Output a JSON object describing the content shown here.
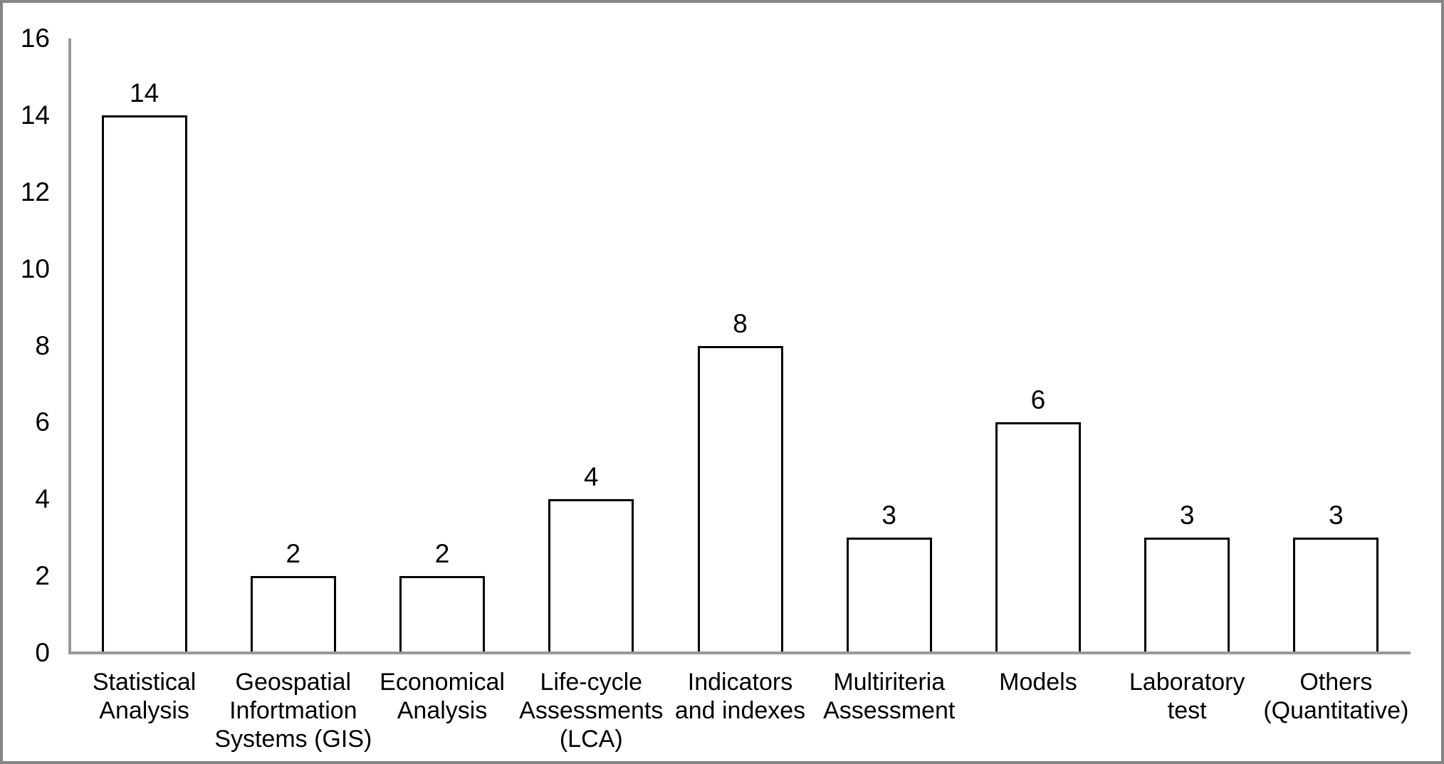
{
  "chart_data": {
    "type": "bar",
    "title": "",
    "xlabel": "",
    "ylabel": "",
    "categories": [
      "Statistical Analysis",
      "Geospatial Infortmation Systems (GIS)",
      "Economical Analysis",
      "Life-cycle Assessments (LCA)",
      "Indicators and indexes",
      "Multiriteria Assessment",
      "Models",
      "Laboratory test",
      "Others (Quantitative)"
    ],
    "category_lines": [
      [
        "Statistical",
        "Analysis"
      ],
      [
        "Geospatial",
        "Infortmation",
        "Systems (GIS)"
      ],
      [
        "Economical",
        "Analysis"
      ],
      [
        "Life-cycle",
        "Assessments",
        "(LCA)"
      ],
      [
        "Indicators",
        "and indexes"
      ],
      [
        "Multiriteria",
        "Assessment"
      ],
      [
        "Models"
      ],
      [
        "Laboratory",
        "test"
      ],
      [
        "Others",
        "(Quantitative)"
      ]
    ],
    "values": [
      14,
      2,
      2,
      4,
      8,
      3,
      6,
      3,
      3
    ],
    "data_labels": [
      "14",
      "2",
      "2",
      "4",
      "8",
      "3",
      "6",
      "3",
      "3"
    ],
    "yticks": [
      "0",
      "2",
      "4",
      "6",
      "8",
      "10",
      "12",
      "14",
      "16"
    ],
    "ylim": [
      0,
      16
    ],
    "grid": false,
    "legend": false,
    "colors": {
      "bar_fill": "#ffffff",
      "bar_border": "#000000",
      "axis": "#999999",
      "frame": "#858585",
      "text": "#000000"
    }
  }
}
